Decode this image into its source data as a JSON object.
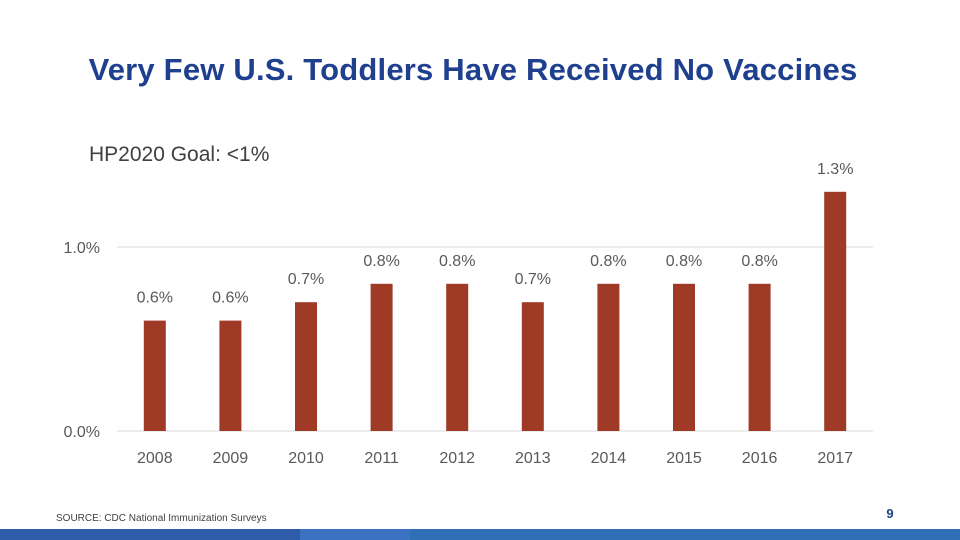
{
  "slide": {
    "title": "Very Few U.S. Toddlers Have Received No Vaccines",
    "goal_label": "HP2020 Goal: <1%",
    "source": "SOURCE:  CDC National Immunization Surveys",
    "page_number": "9"
  },
  "chart_data": {
    "type": "bar",
    "title": "Very Few U.S. Toddlers Have Received No Vaccines",
    "xlabel": "",
    "ylabel": "",
    "categories": [
      "2008",
      "2009",
      "2010",
      "2011",
      "2012",
      "2013",
      "2014",
      "2015",
      "2016",
      "2017"
    ],
    "values": [
      0.6,
      0.6,
      0.7,
      0.8,
      0.8,
      0.7,
      0.8,
      0.8,
      0.8,
      1.3
    ],
    "value_labels": [
      "0.6%",
      "0.6%",
      "0.7%",
      "0.8%",
      "0.8%",
      "0.7%",
      "0.8%",
      "0.8%",
      "0.8%",
      "1.3%"
    ],
    "ylim": [
      0,
      1.0
    ],
    "yticks": [
      0.0,
      1.0
    ],
    "ytick_labels": [
      "0.0%",
      "1.0%"
    ],
    "grid": true,
    "annotation": "HP2020 Goal: <1%"
  },
  "colors": {
    "bar": "#9e3a25",
    "title": "#1f3f8f",
    "gridline": "#d9d9d9",
    "axis_text": "#595959"
  }
}
